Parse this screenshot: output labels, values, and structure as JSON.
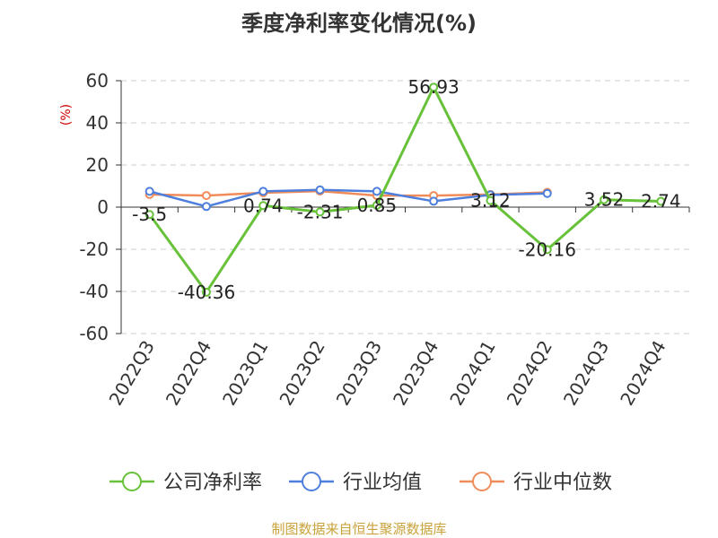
{
  "chart_data": {
    "type": "line",
    "title": "季度净利率变化情况(%)",
    "ylabel": "(%)",
    "xlabel": "",
    "ylim": [
      -60,
      60
    ],
    "yticks": [
      60,
      40,
      20,
      0,
      -20,
      -40,
      -60
    ],
    "grid": true,
    "legend_position": "bottom",
    "categories": [
      "2022Q3",
      "2022Q4",
      "2023Q1",
      "2023Q2",
      "2023Q3",
      "2023Q4",
      "2024Q1",
      "2024Q2",
      "2024Q3",
      "2024Q4"
    ],
    "series": [
      {
        "name": "公司净利率",
        "color": "#67c23a",
        "values": [
          -3.5,
          -40.36,
          0.74,
          -2.31,
          0.85,
          56.93,
          3.12,
          -20.16,
          3.52,
          2.74
        ],
        "labels": [
          "-3.5",
          "-40.36",
          "0.74",
          "-2.31",
          "0.85",
          "56.93",
          "3.12",
          "-20.16",
          "3.52",
          "2.74"
        ]
      },
      {
        "name": "行业均值",
        "color": "#4e7fdc",
        "values": [
          7.5,
          0.3,
          7.5,
          8.2,
          7.5,
          2.8,
          5.8,
          6.5,
          null,
          null
        ]
      },
      {
        "name": "行业中位数",
        "color": "#f08c5a",
        "values": [
          6.0,
          5.5,
          6.8,
          7.6,
          5.5,
          5.5,
          6.0,
          7.0,
          null,
          null
        ]
      }
    ]
  },
  "source": "制图数据来自恒生聚源数据库"
}
